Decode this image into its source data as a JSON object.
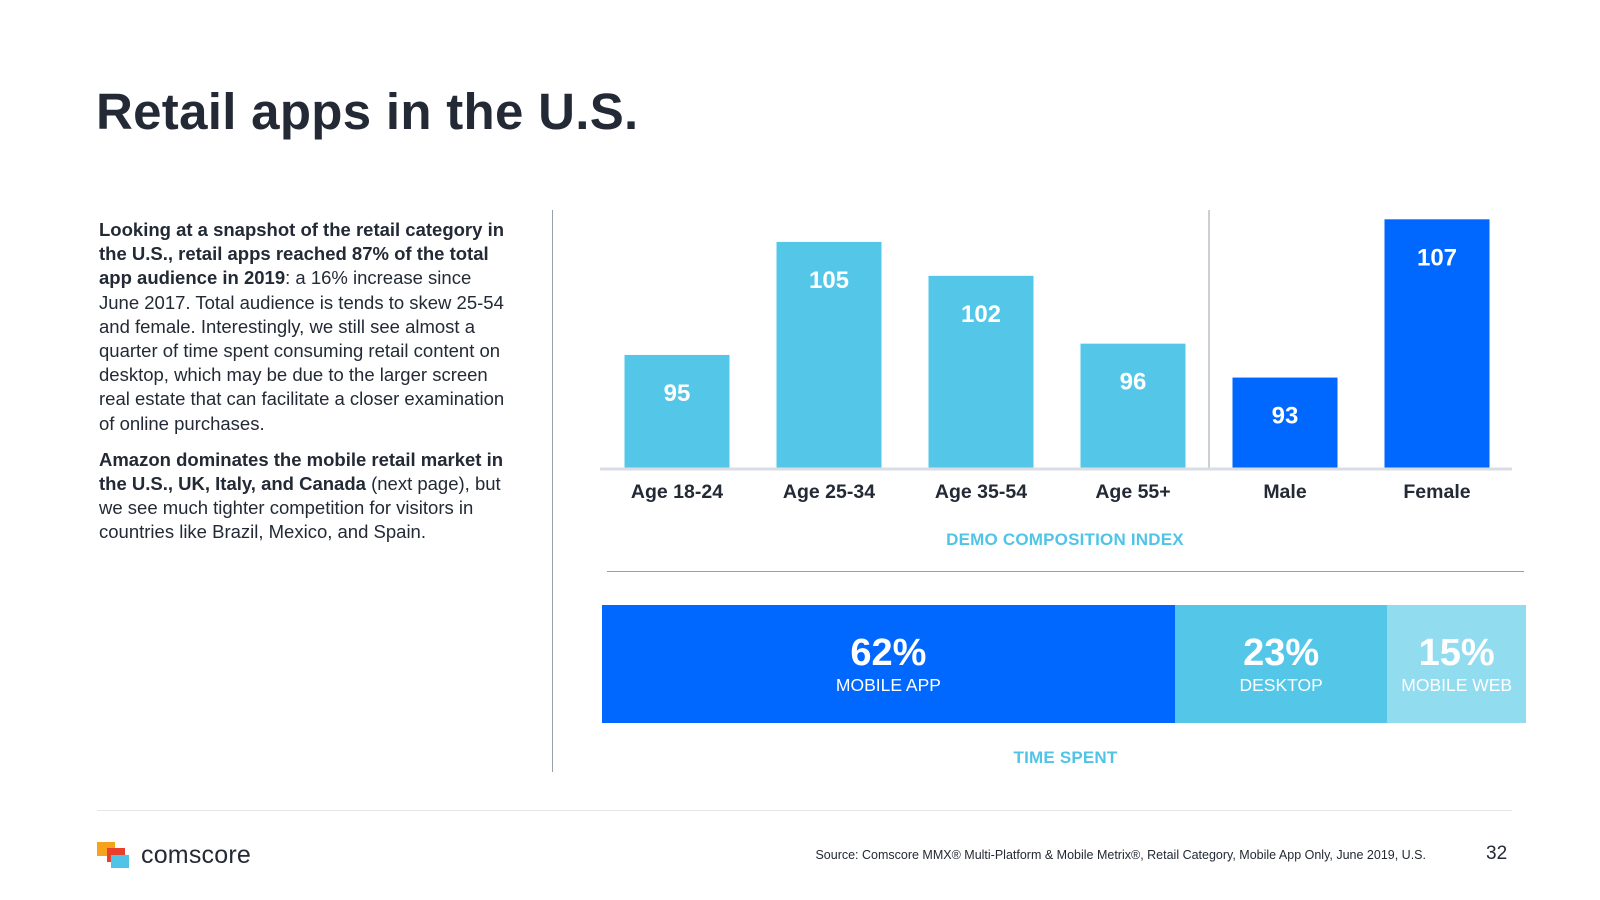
{
  "slide": {
    "title": "Retail apps in the U.S.",
    "para1": {
      "bold": "Looking at a snapshot of the retail category in the U.S., retail apps reached 87%  of the total app audience in 2019",
      "rest": ": a 16% increase since June 2017. Total audience is tends to skew 25-54 and female. Interestingly, we still see almost a quarter of time spent consuming retail content on desktop, which may be due to the larger screen real estate that can facilitate a closer examination of online purchases."
    },
    "para2": {
      "bold": "Amazon dominates the mobile retail market in the U.S., UK, Italy, and Canada",
      "rest": " (next page), but we see much tighter competition for visitors in countries like Brazil, Mexico, and Spain."
    },
    "footer": {
      "brand": "comscore",
      "source": "Source: Comscore MMX® Multi-Platform & Mobile Metrix®, Retail Category, Mobile App Only, June 2019, U.S.",
      "page_number": "32"
    }
  },
  "colors": {
    "light_blue": "#54c7e9",
    "dark_blue": "#0067ff",
    "pale_blue": "#92dcf0",
    "title_accent": "#4fc4e6"
  },
  "chart_data": [
    {
      "type": "bar",
      "title": "DEMO COMPOSITION INDEX",
      "categories": [
        "Age 18-24",
        "Age 25-34",
        "Age 35-54",
        "Age 55+",
        "Male",
        "Female"
      ],
      "values": [
        95,
        105,
        102,
        96,
        93,
        107
      ],
      "groups": [
        "age",
        "age",
        "age",
        "age",
        "gender",
        "gender"
      ],
      "ylim": [
        85,
        108
      ],
      "grid": false
    },
    {
      "type": "bar",
      "orientation": "stacked-horizontal",
      "title": "TIME SPENT",
      "series": [
        {
          "name": "MOBILE APP",
          "value": 62,
          "label": "62%"
        },
        {
          "name": "DESKTOP",
          "value": 23,
          "label": "23%"
        },
        {
          "name": "MOBILE WEB",
          "value": 15,
          "label": "15%"
        }
      ]
    }
  ]
}
